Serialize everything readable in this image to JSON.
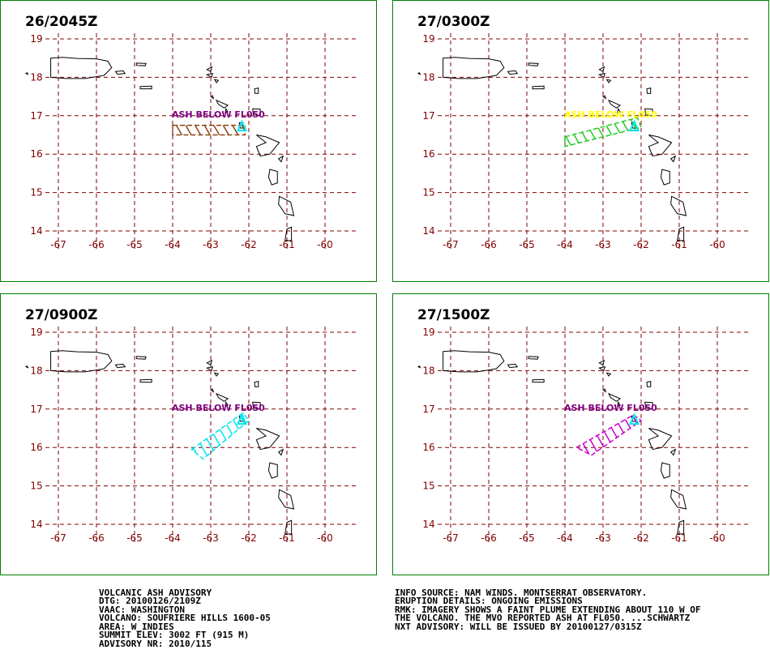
{
  "colors": {
    "frame": "#008000",
    "grid": "#800000",
    "coast": "#000000",
    "label_default": "#800080"
  },
  "map": {
    "lon_ticks": [
      "-67",
      "-66",
      "-65",
      "-64",
      "-63",
      "-62",
      "-61",
      "-60"
    ],
    "lat_ticks": [
      "19",
      "18",
      "17",
      "16",
      "15",
      "14"
    ],
    "ash_label": "ASH BELOW FL050"
  },
  "panels": [
    {
      "title": "26/2045Z",
      "color": "#8b4513",
      "label_color": "#800080",
      "plume": [
        [
          -64.0,
          16.75
        ],
        [
          -62.1,
          16.75
        ],
        [
          -62.1,
          16.5
        ],
        [
          -64.0,
          16.5
        ]
      ]
    },
    {
      "title": "27/0300Z",
      "color": "#22cc22",
      "label_color": "#ffff00",
      "plume": [
        [
          -64.0,
          16.45
        ],
        [
          -62.1,
          16.95
        ],
        [
          -62.0,
          16.7
        ],
        [
          -64.0,
          16.2
        ]
      ]
    },
    {
      "title": "27/0900Z",
      "color": "#00e5ee",
      "label_color": "#800080",
      "plume": [
        [
          -63.5,
          15.95
        ],
        [
          -62.15,
          16.9
        ],
        [
          -62.0,
          16.7
        ],
        [
          -63.2,
          15.7
        ]
      ]
    },
    {
      "title": "27/1500Z",
      "color": "#cc00cc",
      "label_color": "#800080",
      "plume": [
        [
          -63.7,
          16.0
        ],
        [
          -62.2,
          16.85
        ],
        [
          -62.0,
          16.7
        ],
        [
          -63.3,
          15.8
        ]
      ]
    }
  ],
  "advisory_left": [
    "VOLCANIC ASH ADVISORY",
    "DTG: 20100126/2109Z",
    "VAAC: WASHINGTON",
    "VOLCANO: SOUFRIERE HILLS 1600-05",
    "AREA: W_INDIES",
    "SUMMIT ELEV: 3002 FT (915 M)",
    "ADVISORY NR: 2010/115"
  ],
  "advisory_right": [
    "INFO SOURCE: NAM WINDS. MONTSERRAT OBSERVATORY.",
    "ERUPTION DETAILS: ONGOING EMISSIONS",
    "RMK: IMAGERY SHOWS A FAINT PLUME EXTENDING ABOUT 110 W OF",
    "THE VOLCANO. THE MVO REPORTED ASH AT FL050. ...SCHWARTZ",
    "NXT ADVISORY: WILL BE ISSUED BY 20100127/0315Z"
  ]
}
